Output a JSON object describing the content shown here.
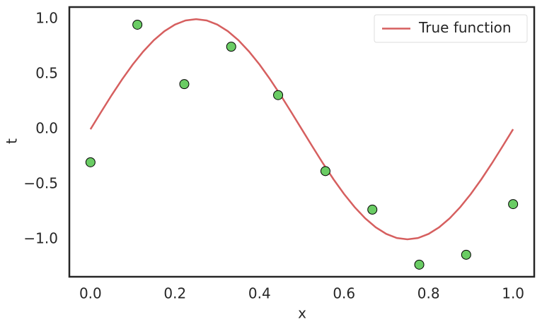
{
  "chart_data": {
    "type": "line",
    "xlabel": "x",
    "ylabel": "t",
    "xlim": [
      -0.05,
      1.05
    ],
    "ylim": [
      -1.34,
      1.11
    ],
    "xticks": [
      {
        "value": 0,
        "label": "0.0"
      },
      0.2,
      0.4,
      0.6,
      0.8,
      {
        "value": 1,
        "label": "1.0"
      }
    ],
    "yticks": [
      {
        "value": -1,
        "label": "−1.0"
      },
      {
        "value": -0.5,
        "label": "−0.5"
      },
      {
        "value": 0,
        "label": "0.0"
      },
      0.5,
      {
        "value": 1,
        "label": "1.0"
      }
    ],
    "grid": false,
    "legend": "upper right",
    "series": [
      {
        "name": "True function",
        "type": "line",
        "color": "#d65f5f",
        "x": [
          0,
          0.025,
          0.05,
          0.075,
          0.1,
          0.125,
          0.15,
          0.175,
          0.2,
          0.225,
          0.25,
          0.275,
          0.3,
          0.325,
          0.35,
          0.375,
          0.4,
          0.425,
          0.45,
          0.475,
          0.5,
          0.525,
          0.55,
          0.575,
          0.6,
          0.625,
          0.65,
          0.675,
          0.7,
          0.725,
          0.75,
          0.775,
          0.8,
          0.825,
          0.85,
          0.875,
          0.9,
          0.925,
          0.95,
          0.975,
          1
        ],
        "values": [
          0,
          0.156,
          0.309,
          0.454,
          0.588,
          0.707,
          0.809,
          0.891,
          0.951,
          0.988,
          1,
          0.988,
          0.951,
          0.891,
          0.809,
          0.707,
          0.588,
          0.454,
          0.309,
          0.156,
          0,
          -0.156,
          -0.309,
          -0.454,
          -0.588,
          -0.707,
          -0.809,
          -0.891,
          -0.951,
          -0.988,
          -1,
          -0.988,
          -0.951,
          -0.891,
          -0.809,
          -0.707,
          -0.588,
          -0.454,
          -0.309,
          -0.156,
          0
        ]
      },
      {
        "type": "scatter",
        "color": "#6acc64",
        "x": [
          0,
          0.111,
          0.222,
          0.333,
          0.444,
          0.556,
          0.667,
          0.778,
          0.889,
          1
        ],
        "values": [
          -0.3,
          0.95,
          0.41,
          0.75,
          0.31,
          -0.38,
          -0.73,
          -1.23,
          -1.14,
          -0.68
        ]
      }
    ]
  }
}
